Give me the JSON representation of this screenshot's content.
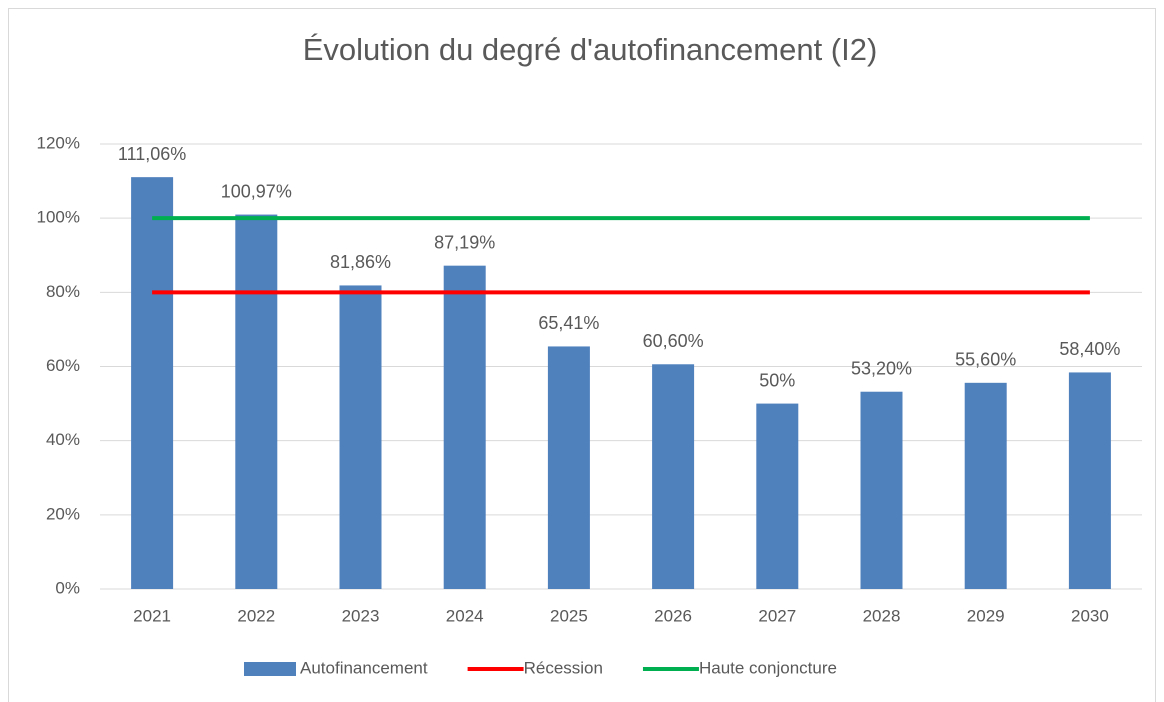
{
  "chart_data": {
    "type": "bar",
    "title": "Évolution du degré d'autofinancement (I2)",
    "categories": [
      "2021",
      "2022",
      "2023",
      "2024",
      "2025",
      "2026",
      "2027",
      "2028",
      "2029",
      "2030"
    ],
    "series": [
      {
        "name": "Autofinancement",
        "type": "bar",
        "color": "#4f81bd",
        "values": [
          111.06,
          100.97,
          81.86,
          87.19,
          65.41,
          60.6,
          50,
          53.2,
          55.6,
          58.4
        ],
        "value_labels": [
          "111,06%",
          "100,97%",
          "81,86%",
          "87,19%",
          "65,41%",
          "60,60%",
          "50%",
          "53,20%",
          "55,60%",
          "58,40%"
        ]
      },
      {
        "name": "Récession",
        "type": "line",
        "color": "#ff0000",
        "values": [
          80,
          80,
          80,
          80,
          80,
          80,
          80,
          80,
          80,
          80
        ]
      },
      {
        "name": "Haute conjoncture",
        "type": "line",
        "color": "#00b050",
        "values": [
          100,
          100,
          100,
          100,
          100,
          100,
          100,
          100,
          100,
          100
        ]
      }
    ],
    "ylim": [
      0,
      120
    ],
    "yticks": [
      {
        "value": 0,
        "label": "0%"
      },
      {
        "value": 20,
        "label": "20%"
      },
      {
        "value": 40,
        "label": "40%"
      },
      {
        "value": 60,
        "label": "60%"
      },
      {
        "value": 80,
        "label": "80%"
      },
      {
        "value": 100,
        "label": "100%"
      },
      {
        "value": 120,
        "label": "120%"
      }
    ],
    "grid": true,
    "legend": "bottom"
  }
}
